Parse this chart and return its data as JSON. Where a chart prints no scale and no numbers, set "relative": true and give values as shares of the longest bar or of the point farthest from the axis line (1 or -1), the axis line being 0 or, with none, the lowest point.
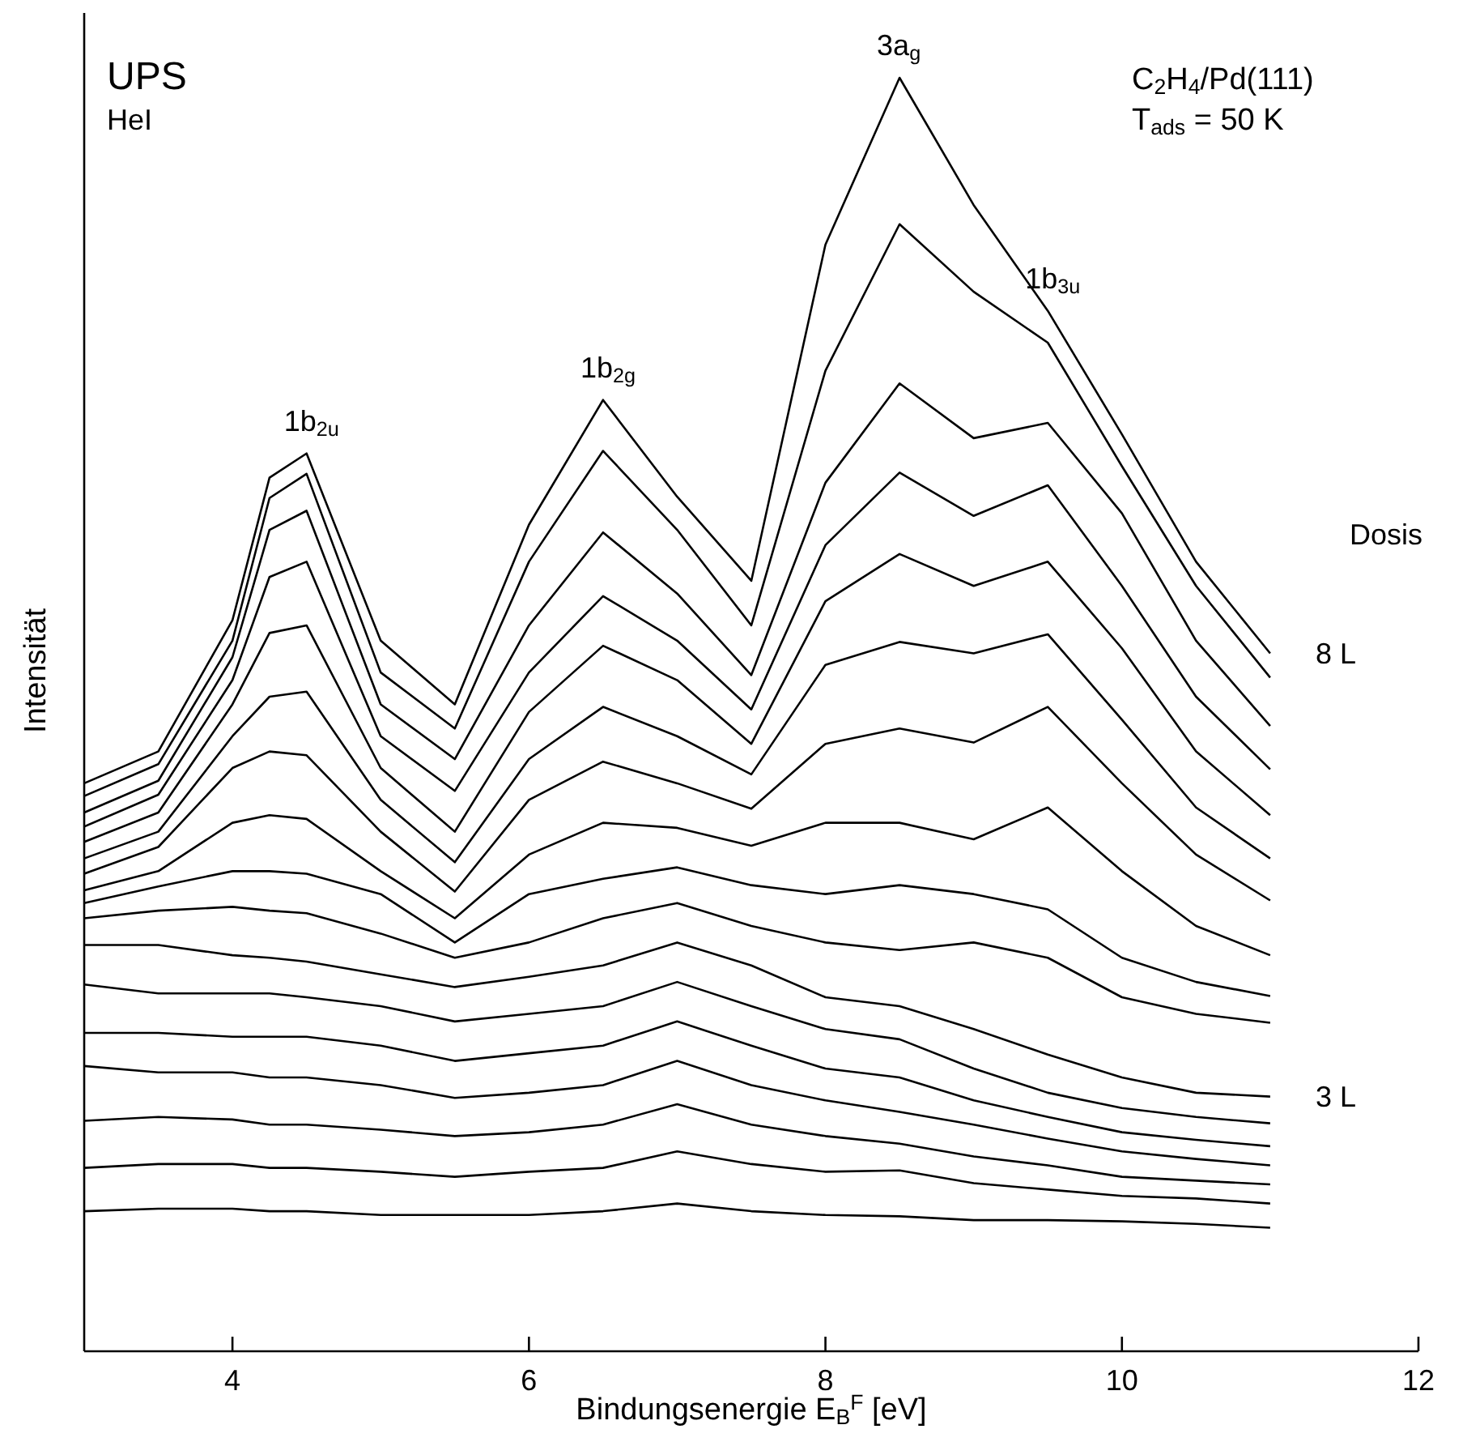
{
  "chart_data": {
    "type": "line",
    "relative": true,
    "xlabel": "Bindungsenergie E$_{B}$$^{F}$ [eV]",
    "ylabel": "Intensität",
    "legend_title": "Dosis",
    "x": [
      3,
      3.5,
      4,
      4.25,
      4.5,
      5,
      5.5,
      6,
      6.5,
      7,
      7.5,
      8,
      8.5,
      9,
      9.5,
      10,
      10.5,
      11
    ],
    "xlim": [
      3,
      12
    ],
    "xticks": [
      4,
      6,
      8,
      10,
      12
    ],
    "grid": false,
    "marker": "none",
    "line_style": "solid",
    "series": [
      {
        "name": "8 L",
        "color": "#000000",
        "values": [
          0.446,
          0.471,
          0.574,
          0.686,
          0.705,
          0.558,
          0.508,
          0.649,
          0.747,
          0.671,
          0.605,
          0.869,
          1.0,
          0.9,
          0.817,
          0.72,
          0.62,
          0.548
        ]
      },
      {
        "color": "#000000",
        "values": [
          0.436,
          0.461,
          0.558,
          0.67,
          0.689,
          0.533,
          0.489,
          0.62,
          0.707,
          0.645,
          0.57,
          0.77,
          0.885,
          0.832,
          0.792,
          0.695,
          0.601,
          0.529
        ]
      },
      {
        "color": "#000000",
        "values": [
          0.423,
          0.448,
          0.545,
          0.645,
          0.66,
          0.508,
          0.465,
          0.57,
          0.643,
          0.595,
          0.531,
          0.682,
          0.76,
          0.717,
          0.729,
          0.658,
          0.558,
          0.491
        ]
      },
      {
        "color": "#000000",
        "values": [
          0.412,
          0.437,
          0.527,
          0.608,
          0.62,
          0.483,
          0.44,
          0.533,
          0.593,
          0.558,
          0.504,
          0.633,
          0.69,
          0.656,
          0.68,
          0.601,
          0.514,
          0.457
        ]
      },
      {
        "color": "#000000",
        "values": [
          0.4,
          0.423,
          0.508,
          0.564,
          0.57,
          0.458,
          0.408,
          0.502,
          0.554,
          0.527,
          0.477,
          0.589,
          0.626,
          0.601,
          0.62,
          0.552,
          0.471,
          0.421
        ]
      },
      {
        "color": "#000000",
        "values": [
          0.387,
          0.408,
          0.483,
          0.514,
          0.518,
          0.433,
          0.384,
          0.465,
          0.506,
          0.483,
          0.453,
          0.539,
          0.557,
          0.548,
          0.563,
          0.496,
          0.427,
          0.387
        ]
      },
      {
        "color": "#000000",
        "values": [
          0.375,
          0.396,
          0.458,
          0.471,
          0.468,
          0.408,
          0.361,
          0.433,
          0.463,
          0.446,
          0.426,
          0.477,
          0.489,
          0.478,
          0.506,
          0.446,
          0.39,
          0.354
        ]
      },
      {
        "color": "#000000",
        "values": [
          0.362,
          0.377,
          0.415,
          0.421,
          0.418,
          0.377,
          0.34,
          0.39,
          0.415,
          0.411,
          0.397,
          0.415,
          0.415,
          0.402,
          0.427,
          0.377,
          0.334,
          0.311
        ]
      },
      {
        "color": "#000000",
        "values": [
          0.352,
          0.365,
          0.377,
          0.377,
          0.375,
          0.359,
          0.321,
          0.359,
          0.371,
          0.38,
          0.366,
          0.359,
          0.366,
          0.359,
          0.347,
          0.309,
          0.29,
          0.279
        ]
      },
      {
        "color": "#000000",
        "values": [
          0.34,
          0.346,
          0.349,
          0.346,
          0.344,
          0.328,
          0.309,
          0.321,
          0.34,
          0.352,
          0.334,
          0.321,
          0.315,
          0.321,
          0.309,
          0.278,
          0.265,
          0.258
        ]
      },
      {
        "name": "3 L",
        "color": "#000000",
        "values": [
          0.319,
          0.319,
          0.311,
          0.309,
          0.306,
          0.296,
          0.286,
          0.294,
          0.303,
          0.321,
          0.303,
          0.278,
          0.271,
          0.253,
          0.233,
          0.215,
          0.203,
          0.2
        ]
      },
      {
        "color": "#000000",
        "values": [
          0.288,
          0.281,
          0.281,
          0.281,
          0.278,
          0.271,
          0.259,
          0.265,
          0.271,
          0.29,
          0.271,
          0.253,
          0.245,
          0.222,
          0.203,
          0.191,
          0.184,
          0.179
        ]
      },
      {
        "color": "#000000",
        "values": [
          0.25,
          0.25,
          0.247,
          0.247,
          0.247,
          0.24,
          0.228,
          0.234,
          0.24,
          0.259,
          0.24,
          0.222,
          0.215,
          0.197,
          0.184,
          0.172,
          0.166,
          0.161
        ]
      },
      {
        "color": "#000000",
        "values": [
          0.224,
          0.219,
          0.219,
          0.215,
          0.215,
          0.209,
          0.199,
          0.203,
          0.209,
          0.228,
          0.209,
          0.197,
          0.188,
          0.178,
          0.167,
          0.157,
          0.151,
          0.146
        ]
      },
      {
        "color": "#000000",
        "values": [
          0.181,
          0.184,
          0.182,
          0.178,
          0.178,
          0.174,
          0.169,
          0.172,
          0.178,
          0.194,
          0.178,
          0.169,
          0.163,
          0.153,
          0.146,
          0.137,
          0.134,
          0.131
        ]
      },
      {
        "color": "#000000",
        "values": [
          0.144,
          0.147,
          0.147,
          0.144,
          0.144,
          0.141,
          0.137,
          0.141,
          0.144,
          0.157,
          0.147,
          0.141,
          0.142,
          0.132,
          0.127,
          0.122,
          0.12,
          0.116
        ]
      },
      {
        "color": "#000000",
        "values": [
          0.11,
          0.112,
          0.112,
          0.11,
          0.11,
          0.107,
          0.107,
          0.107,
          0.11,
          0.116,
          0.11,
          0.107,
          0.106,
          0.103,
          0.103,
          0.102,
          0.1,
          0.097
        ]
      }
    ],
    "annotations": [
      "UPS",
      "HeI",
      "C$_{2}$H$_{4}$/Pd(111)",
      "T$_{ads}$ = 50 K",
      {
        "text": "1b$_{2u}$",
        "x": 4.5,
        "y": 0.705
      },
      {
        "text": "1b$_{2g}$",
        "x": 6.5,
        "y": 0.747
      },
      {
        "text": "3a$_{g}$",
        "x": 8.5,
        "y": 1.0
      },
      {
        "text": "1b$_{3u}$",
        "x": 9.5,
        "y": 0.817
      }
    ]
  }
}
